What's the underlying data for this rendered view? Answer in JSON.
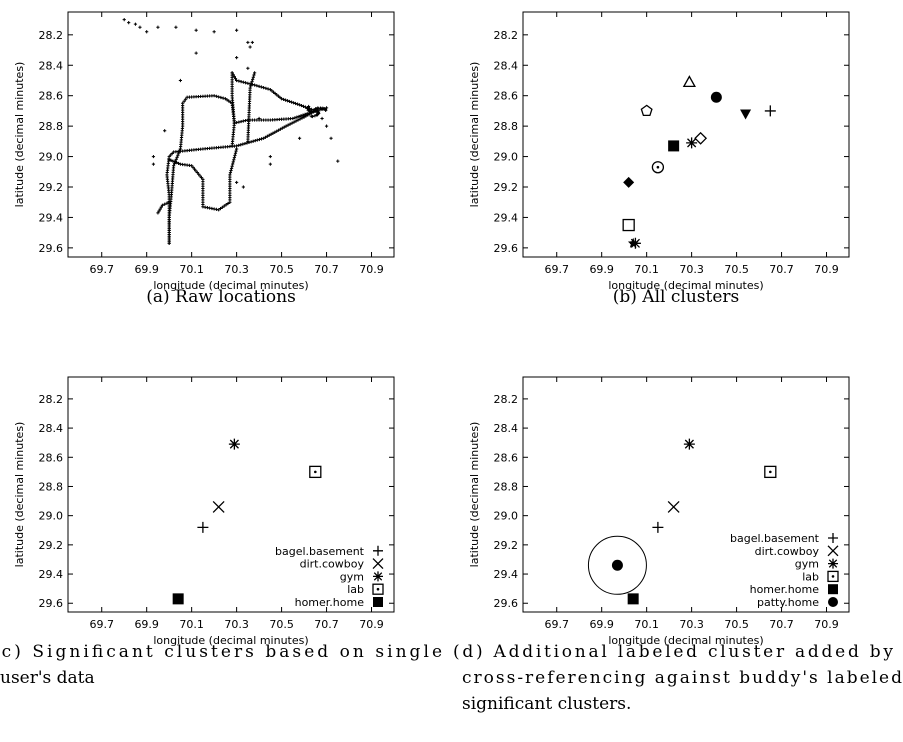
{
  "chart_data": [
    {
      "type": "scatter",
      "xlabel": "longitude (decimal minutes)",
      "ylabel": "latitude (decimal minutes)",
      "xlim": [
        69.55,
        71.0
      ],
      "ylim": [
        28.05,
        29.66
      ],
      "y_inverted": true,
      "xticks": [
        "69.7",
        "69.9",
        "70.1",
        "70.3",
        "70.5",
        "70.7",
        "70.9"
      ],
      "yticks": [
        "28.2",
        "28.4",
        "28.6",
        "28.8",
        "29.0",
        "29.2",
        "29.4",
        "29.6"
      ],
      "caption": "(a) Raw locations",
      "series": [
        {
          "marker": "plus-dot",
          "tracks": [
            [
              [
                70.0,
                29.57
              ],
              [
                70.0,
                29.4
              ],
              [
                70.0,
                29.25
              ],
              [
                69.99,
                29.12
              ],
              [
                70.0,
                29.0
              ],
              [
                70.02,
                28.97
              ],
              [
                70.15,
                28.95
              ],
              [
                70.3,
                28.93
              ],
              [
                70.42,
                28.88
              ],
              [
                70.52,
                28.8
              ],
              [
                70.6,
                28.74
              ],
              [
                70.65,
                28.7
              ]
            ],
            [
              [
                70.0,
                29.57
              ],
              [
                70.0,
                29.4
              ],
              [
                70.01,
                29.25
              ],
              [
                70.02,
                29.06
              ],
              [
                70.05,
                28.95
              ]
            ],
            [
              [
                69.95,
                29.37
              ],
              [
                69.97,
                29.32
              ],
              [
                70.0,
                29.3
              ]
            ],
            [
              [
                70.0,
                29.02
              ],
              [
                70.05,
                29.05
              ],
              [
                70.1,
                29.06
              ],
              [
                70.15,
                29.15
              ],
              [
                70.15,
                29.33
              ],
              [
                70.22,
                29.35
              ],
              [
                70.27,
                29.3
              ],
              [
                70.27,
                29.12
              ],
              [
                70.3,
                28.95
              ]
            ],
            [
              [
                70.05,
                28.95
              ],
              [
                70.06,
                28.8
              ],
              [
                70.06,
                28.65
              ],
              [
                70.08,
                28.61
              ],
              [
                70.2,
                28.6
              ],
              [
                70.25,
                28.62
              ],
              [
                70.28,
                28.65
              ],
              [
                70.29,
                28.78
              ],
              [
                70.28,
                28.93
              ]
            ],
            [
              [
                70.28,
                28.45
              ],
              [
                70.3,
                28.5
              ],
              [
                70.38,
                28.53
              ],
              [
                70.45,
                28.56
              ],
              [
                70.5,
                28.62
              ],
              [
                70.58,
                28.66
              ],
              [
                70.65,
                28.7
              ]
            ],
            [
              [
                70.28,
                28.45
              ],
              [
                70.28,
                28.6
              ],
              [
                70.29,
                28.78
              ]
            ],
            [
              [
                70.29,
                28.78
              ],
              [
                70.35,
                28.76
              ],
              [
                70.45,
                28.76
              ],
              [
                70.55,
                28.75
              ],
              [
                70.65,
                28.7
              ]
            ],
            [
              [
                70.35,
                28.9
              ],
              [
                70.36,
                28.55
              ],
              [
                70.38,
                28.45
              ]
            ],
            [
              [
                70.65,
                28.7
              ],
              [
                70.68,
                28.69
              ],
              [
                70.7,
                28.68
              ]
            ]
          ],
          "points": [
            [
              69.8,
              28.1
            ],
            [
              69.82,
              28.12
            ],
            [
              69.85,
              28.13
            ],
            [
              69.87,
              28.15
            ],
            [
              69.9,
              28.18
            ],
            [
              69.95,
              28.15
            ],
            [
              70.03,
              28.15
            ],
            [
              70.12,
              28.17
            ],
            [
              70.2,
              28.18
            ],
            [
              70.3,
              28.17
            ],
            [
              70.35,
              28.25
            ],
            [
              70.37,
              28.25
            ],
            [
              70.36,
              28.28
            ],
            [
              70.35,
              28.42
            ],
            [
              69.98,
              28.83
            ],
            [
              69.93,
              29.05
            ],
            [
              69.93,
              29.0
            ],
            [
              70.05,
              28.5
            ],
            [
              70.4,
              28.75
            ],
            [
              70.68,
              28.75
            ],
            [
              70.7,
              28.8
            ],
            [
              70.72,
              28.88
            ],
            [
              70.75,
              29.03
            ],
            [
              70.58,
              28.88
            ],
            [
              70.45,
              29.0
            ],
            [
              70.45,
              29.05
            ],
            [
              70.33,
              29.2
            ],
            [
              70.3,
              29.17
            ],
            [
              70.12,
              28.32
            ],
            [
              70.3,
              28.35
            ],
            [
              70.6,
              28.74
            ]
          ]
        }
      ]
    },
    {
      "type": "scatter",
      "xlabel": "longitude (decimal minutes)",
      "ylabel": "latitude (decimal minutes)",
      "xlim": [
        69.55,
        71.0
      ],
      "ylim": [
        28.05,
        29.66
      ],
      "y_inverted": true,
      "xticks": [
        "69.7",
        "69.9",
        "70.1",
        "70.3",
        "70.5",
        "70.7",
        "70.9"
      ],
      "yticks": [
        "28.2",
        "28.4",
        "28.6",
        "28.8",
        "29.0",
        "29.2",
        "29.4",
        "29.6"
      ],
      "caption": "(b) All clusters",
      "points": [
        {
          "x": 70.29,
          "y": 28.51,
          "marker": "triangle-open"
        },
        {
          "x": 70.41,
          "y": 28.61,
          "marker": "circle-filled"
        },
        {
          "x": 70.1,
          "y": 28.7,
          "marker": "pentagon-open"
        },
        {
          "x": 70.54,
          "y": 28.72,
          "marker": "triangle-down-filled"
        },
        {
          "x": 70.65,
          "y": 28.7,
          "marker": "plus"
        },
        {
          "x": 70.34,
          "y": 28.88,
          "marker": "diamond-open"
        },
        {
          "x": 70.3,
          "y": 28.91,
          "marker": "asterisk"
        },
        {
          "x": 70.22,
          "y": 28.93,
          "marker": "square-filled"
        },
        {
          "x": 70.15,
          "y": 29.07,
          "marker": "circle-dot"
        },
        {
          "x": 70.02,
          "y": 29.17,
          "marker": "diamond-filled"
        },
        {
          "x": 70.02,
          "y": 29.45,
          "marker": "square-open"
        },
        {
          "x": 70.05,
          "y": 29.57,
          "marker": "asterisk"
        },
        {
          "x": 70.04,
          "y": 29.57,
          "marker": "star-filled"
        }
      ]
    },
    {
      "type": "scatter",
      "xlabel": "longitude (decimal minutes)",
      "ylabel": "latitude (decimal minutes)",
      "xlim": [
        69.55,
        71.0
      ],
      "ylim": [
        28.05,
        29.66
      ],
      "y_inverted": true,
      "xticks": [
        "69.7",
        "69.9",
        "70.1",
        "70.3",
        "70.5",
        "70.7",
        "70.9"
      ],
      "yticks": [
        "28.2",
        "28.4",
        "28.6",
        "28.8",
        "29.0",
        "29.2",
        "29.4",
        "29.6"
      ],
      "caption_lines": [
        "(c) Significant clusters based on single",
        "user's data"
      ],
      "legend_position": "bottom-right",
      "series": [
        {
          "name": "bagel.basement",
          "marker": "plus",
          "x": [
            70.15
          ],
          "y": [
            29.08
          ]
        },
        {
          "name": "dirt.cowboy",
          "marker": "cross",
          "x": [
            70.22
          ],
          "y": [
            28.94
          ]
        },
        {
          "name": "gym",
          "marker": "asterisk",
          "x": [
            70.29
          ],
          "y": [
            28.51
          ]
        },
        {
          "name": "lab",
          "marker": "square-dot",
          "x": [
            70.65
          ],
          "y": [
            28.7
          ]
        },
        {
          "name": "homer.home",
          "marker": "square-filled",
          "x": [
            70.04
          ],
          "y": [
            29.57
          ]
        }
      ]
    },
    {
      "type": "scatter",
      "xlabel": "longitude (decimal minutes)",
      "ylabel": "latitude (decimal minutes)",
      "xlim": [
        69.55,
        71.0
      ],
      "ylim": [
        28.05,
        29.66
      ],
      "y_inverted": true,
      "xticks": [
        "69.7",
        "69.9",
        "70.1",
        "70.3",
        "70.5",
        "70.7",
        "70.9"
      ],
      "yticks": [
        "28.2",
        "28.4",
        "28.6",
        "28.8",
        "29.0",
        "29.2",
        "29.4",
        "29.6"
      ],
      "caption_lines": [
        "(d) Additional labeled cluster added by",
        "cross-referencing against buddy's labeled",
        "significant clusters."
      ],
      "legend_position": "bottom-right",
      "series": [
        {
          "name": "bagel.basement",
          "marker": "plus",
          "x": [
            70.15
          ],
          "y": [
            29.08
          ]
        },
        {
          "name": "dirt.cowboy",
          "marker": "cross",
          "x": [
            70.22
          ],
          "y": [
            28.94
          ]
        },
        {
          "name": "gym",
          "marker": "asterisk",
          "x": [
            70.29
          ],
          "y": [
            28.51
          ]
        },
        {
          "name": "lab",
          "marker": "square-dot",
          "x": [
            70.65
          ],
          "y": [
            28.7
          ]
        },
        {
          "name": "homer.home",
          "marker": "square-filled",
          "x": [
            70.04
          ],
          "y": [
            29.57
          ]
        },
        {
          "name": "patty.home",
          "marker": "circle-filled",
          "x": [
            69.97
          ],
          "y": [
            29.34
          ],
          "ring": true
        }
      ]
    }
  ]
}
